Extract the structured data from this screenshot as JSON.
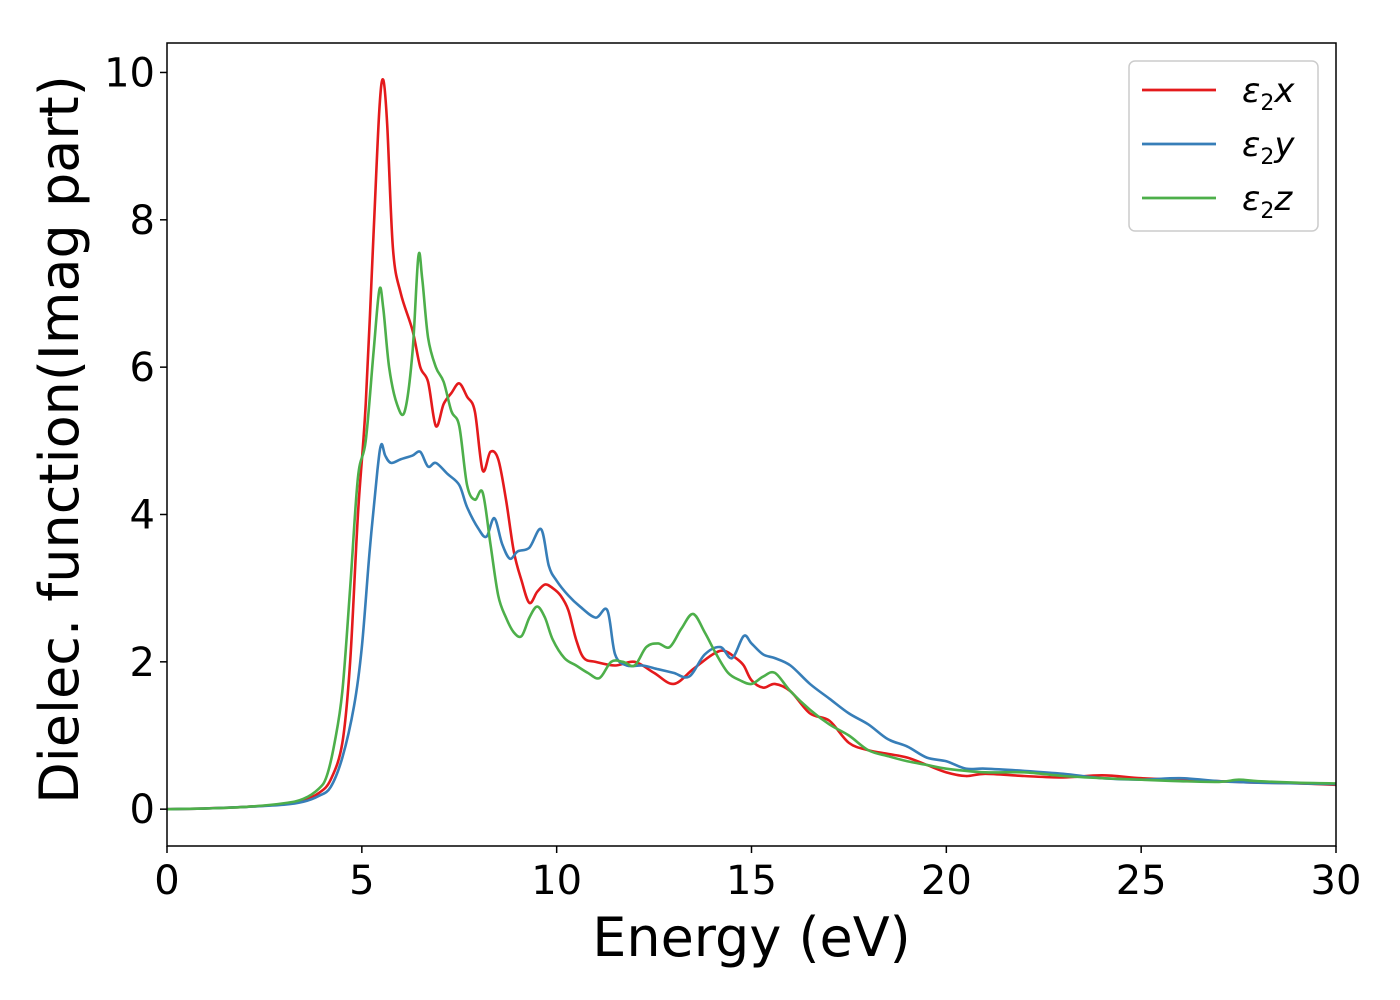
{
  "chart_data": {
    "type": "line",
    "xlabel": "Energy (eV)",
    "ylabel": "Dielec. function(Imag part)",
    "xlim": [
      0,
      30
    ],
    "ylim": [
      -0.5,
      10.4
    ],
    "xticks": [
      0,
      5,
      10,
      15,
      20,
      25,
      30
    ],
    "yticks": [
      0,
      2,
      4,
      6,
      8,
      10
    ],
    "grid": false,
    "legend_position": "top-right",
    "series": [
      {
        "name": "ε2x",
        "legend_main": "ε",
        "legend_sub": "2",
        "legend_suffix": "x",
        "color": "#e41a1c",
        "x": [
          0,
          1,
          2,
          3,
          3.5,
          3.9,
          4.2,
          4.5,
          4.7,
          4.9,
          5.1,
          5.3,
          5.45,
          5.55,
          5.65,
          5.8,
          6.0,
          6.3,
          6.5,
          6.7,
          6.9,
          7.1,
          7.3,
          7.5,
          7.7,
          7.9,
          8.1,
          8.3,
          8.5,
          8.7,
          8.9,
          9.1,
          9.3,
          9.5,
          9.7,
          9.9,
          10.1,
          10.3,
          10.5,
          10.7,
          11.0,
          11.5,
          12.0,
          12.5,
          13.0,
          13.5,
          14.0,
          14.3,
          14.6,
          14.8,
          15.0,
          15.3,
          15.6,
          16.0,
          16.5,
          17.0,
          17.5,
          18.0,
          18.5,
          19.0,
          19.5,
          20.0,
          20.5,
          21.0,
          22.0,
          23.0,
          24.0,
          25.0,
          26.0,
          27.0,
          28.0,
          29.0,
          30.0
        ],
        "values": [
          0,
          0.01,
          0.03,
          0.07,
          0.12,
          0.22,
          0.4,
          0.9,
          2.0,
          4.0,
          5.5,
          7.8,
          9.5,
          9.9,
          9.3,
          7.6,
          7.0,
          6.5,
          6.0,
          5.8,
          5.2,
          5.5,
          5.65,
          5.78,
          5.6,
          5.4,
          4.6,
          4.85,
          4.75,
          4.2,
          3.5,
          3.1,
          2.8,
          2.95,
          3.05,
          3.0,
          2.9,
          2.7,
          2.3,
          2.05,
          2.0,
          1.95,
          2.0,
          1.85,
          1.7,
          1.9,
          2.1,
          2.15,
          2.05,
          1.95,
          1.75,
          1.65,
          1.7,
          1.6,
          1.3,
          1.2,
          0.9,
          0.8,
          0.75,
          0.7,
          0.6,
          0.5,
          0.45,
          0.48,
          0.45,
          0.43,
          0.46,
          0.42,
          0.4,
          0.38,
          0.36,
          0.35,
          0.33
        ]
      },
      {
        "name": "ε2y",
        "legend_main": "ε",
        "legend_sub": "2",
        "legend_suffix": "y",
        "color": "#377eb8",
        "x": [
          0,
          1,
          2,
          3,
          3.5,
          3.9,
          4.2,
          4.5,
          4.8,
          5.0,
          5.2,
          5.4,
          5.5,
          5.6,
          5.75,
          6.0,
          6.3,
          6.5,
          6.7,
          6.9,
          7.2,
          7.5,
          7.7,
          8.0,
          8.2,
          8.4,
          8.6,
          8.8,
          9.0,
          9.3,
          9.6,
          9.8,
          10.0,
          10.3,
          10.6,
          11.0,
          11.3,
          11.5,
          11.8,
          12.2,
          12.6,
          13.0,
          13.4,
          13.8,
          14.2,
          14.5,
          14.8,
          15.0,
          15.3,
          15.6,
          16.0,
          16.5,
          17.0,
          17.5,
          18.0,
          18.5,
          19.0,
          19.5,
          20.0,
          20.5,
          21.0,
          22.0,
          23.0,
          24.0,
          25.0,
          26.0,
          27.0,
          28.0,
          29.0,
          30.0
        ],
        "values": [
          0,
          0.01,
          0.03,
          0.06,
          0.1,
          0.18,
          0.3,
          0.7,
          1.4,
          2.2,
          3.5,
          4.6,
          4.95,
          4.8,
          4.7,
          4.75,
          4.8,
          4.85,
          4.65,
          4.7,
          4.55,
          4.4,
          4.1,
          3.8,
          3.7,
          3.95,
          3.6,
          3.4,
          3.5,
          3.55,
          3.8,
          3.3,
          3.1,
          2.9,
          2.75,
          2.6,
          2.7,
          2.1,
          1.95,
          1.95,
          1.9,
          1.85,
          1.8,
          2.1,
          2.2,
          2.05,
          2.35,
          2.25,
          2.1,
          2.05,
          1.95,
          1.7,
          1.5,
          1.3,
          1.15,
          0.95,
          0.85,
          0.7,
          0.65,
          0.55,
          0.55,
          0.52,
          0.48,
          0.42,
          0.4,
          0.42,
          0.38,
          0.36,
          0.35,
          0.34
        ]
      },
      {
        "name": "ε2z",
        "legend_main": "ε",
        "legend_sub": "2",
        "legend_suffix": "z",
        "color": "#4daf4a",
        "x": [
          0,
          1,
          2,
          3,
          3.5,
          3.9,
          4.1,
          4.3,
          4.5,
          4.7,
          4.9,
          5.1,
          5.3,
          5.45,
          5.55,
          5.7,
          5.9,
          6.1,
          6.3,
          6.45,
          6.55,
          6.7,
          6.9,
          7.1,
          7.3,
          7.5,
          7.7,
          7.9,
          8.1,
          8.3,
          8.5,
          8.7,
          8.9,
          9.1,
          9.3,
          9.5,
          9.7,
          9.9,
          10.2,
          10.5,
          10.8,
          11.1,
          11.4,
          11.7,
          12.0,
          12.3,
          12.6,
          12.9,
          13.2,
          13.5,
          13.8,
          14.1,
          14.4,
          14.7,
          15.0,
          15.3,
          15.6,
          16.0,
          16.5,
          17.0,
          17.5,
          18.0,
          18.5,
          19.0,
          19.5,
          20.0,
          21.0,
          22.0,
          23.0,
          24.0,
          25.0,
          26.0,
          27.0,
          27.5,
          28.0,
          29.0,
          30.0
        ],
        "values": [
          0,
          0.01,
          0.03,
          0.08,
          0.14,
          0.28,
          0.45,
          0.9,
          1.6,
          3.0,
          4.5,
          5.0,
          6.2,
          7.05,
          6.8,
          6.0,
          5.5,
          5.4,
          6.2,
          7.5,
          7.2,
          6.4,
          6.0,
          5.8,
          5.4,
          5.2,
          4.4,
          4.2,
          4.3,
          3.6,
          2.9,
          2.6,
          2.4,
          2.35,
          2.6,
          2.75,
          2.6,
          2.3,
          2.05,
          1.95,
          1.85,
          1.78,
          2.0,
          2.0,
          1.95,
          2.2,
          2.25,
          2.2,
          2.45,
          2.65,
          2.4,
          2.1,
          1.85,
          1.75,
          1.7,
          1.8,
          1.85,
          1.6,
          1.35,
          1.15,
          1.0,
          0.8,
          0.72,
          0.65,
          0.6,
          0.55,
          0.5,
          0.5,
          0.45,
          0.42,
          0.4,
          0.38,
          0.37,
          0.4,
          0.38,
          0.36,
          0.35
        ]
      }
    ]
  }
}
